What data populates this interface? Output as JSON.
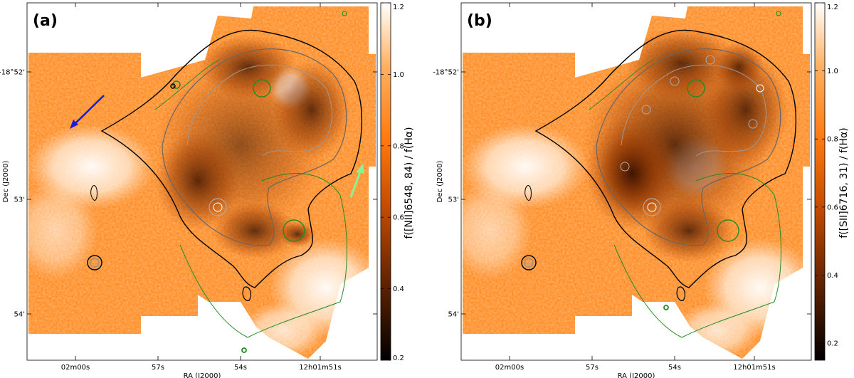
{
  "colors": {
    "map_low": "#000000",
    "map_mid": "#b34400",
    "map_high": "#ff8a1c",
    "map_top": "#ffffff",
    "contour_black": "#000000",
    "contour_grey": "#888888",
    "contour_green": "#228b22",
    "arrow_blue": "#1c1cd8",
    "arrow_green": "#8ff08f"
  },
  "panels": [
    {
      "label": "(a)",
      "xlabel": "RA (J2000)",
      "ylabel": "Dec (J2000)",
      "xticks": [
        "02m00s",
        "57s",
        "54s",
        "12h01m51s"
      ],
      "yticks": [
        "-18°52'",
        "53'",
        "54'"
      ],
      "colorbar_label": "f([NII]6548, 84) / f(Hα)",
      "colorbar_ticks": [
        "1.2",
        "1.0",
        "0.8",
        "0.6",
        "0.4",
        "0.2"
      ],
      "colorbar_range": [
        0.2,
        1.2
      ],
      "arrows": [
        "blue",
        "light-green"
      ]
    },
    {
      "label": "(b)",
      "xlabel": "RA (J2000)",
      "ylabel": "Dec (J2000)",
      "xticks": [
        "02m00s",
        "57s",
        "54s",
        "12h01m51s"
      ],
      "yticks": [
        "-18°52'",
        "53'",
        "54'"
      ],
      "colorbar_label": "f([SII]6716, 31) / f(Hα)",
      "colorbar_ticks": [
        "1.2",
        "1.0",
        "0.8",
        "0.6",
        "0.4",
        "0.2"
      ],
      "colorbar_range": [
        0.15,
        1.2
      ],
      "arrows": []
    }
  ]
}
